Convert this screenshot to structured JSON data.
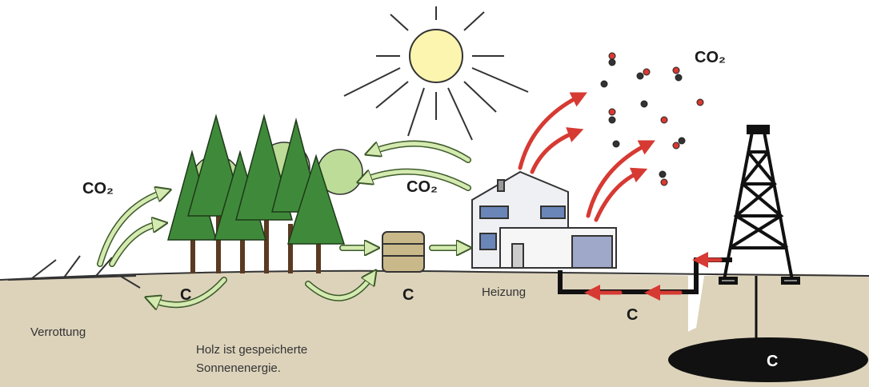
{
  "co2_labels": [
    "CO₂",
    "CO₂",
    "CO₂"
  ],
  "carbon_labels": [
    "C",
    "C",
    "C",
    "C"
  ],
  "captions": {
    "rotting": "Verrottung",
    "wood": [
      "Holz ist gespeicherte",
      "Sonnenenergie."
    ],
    "heating": "Heizung"
  }
}
